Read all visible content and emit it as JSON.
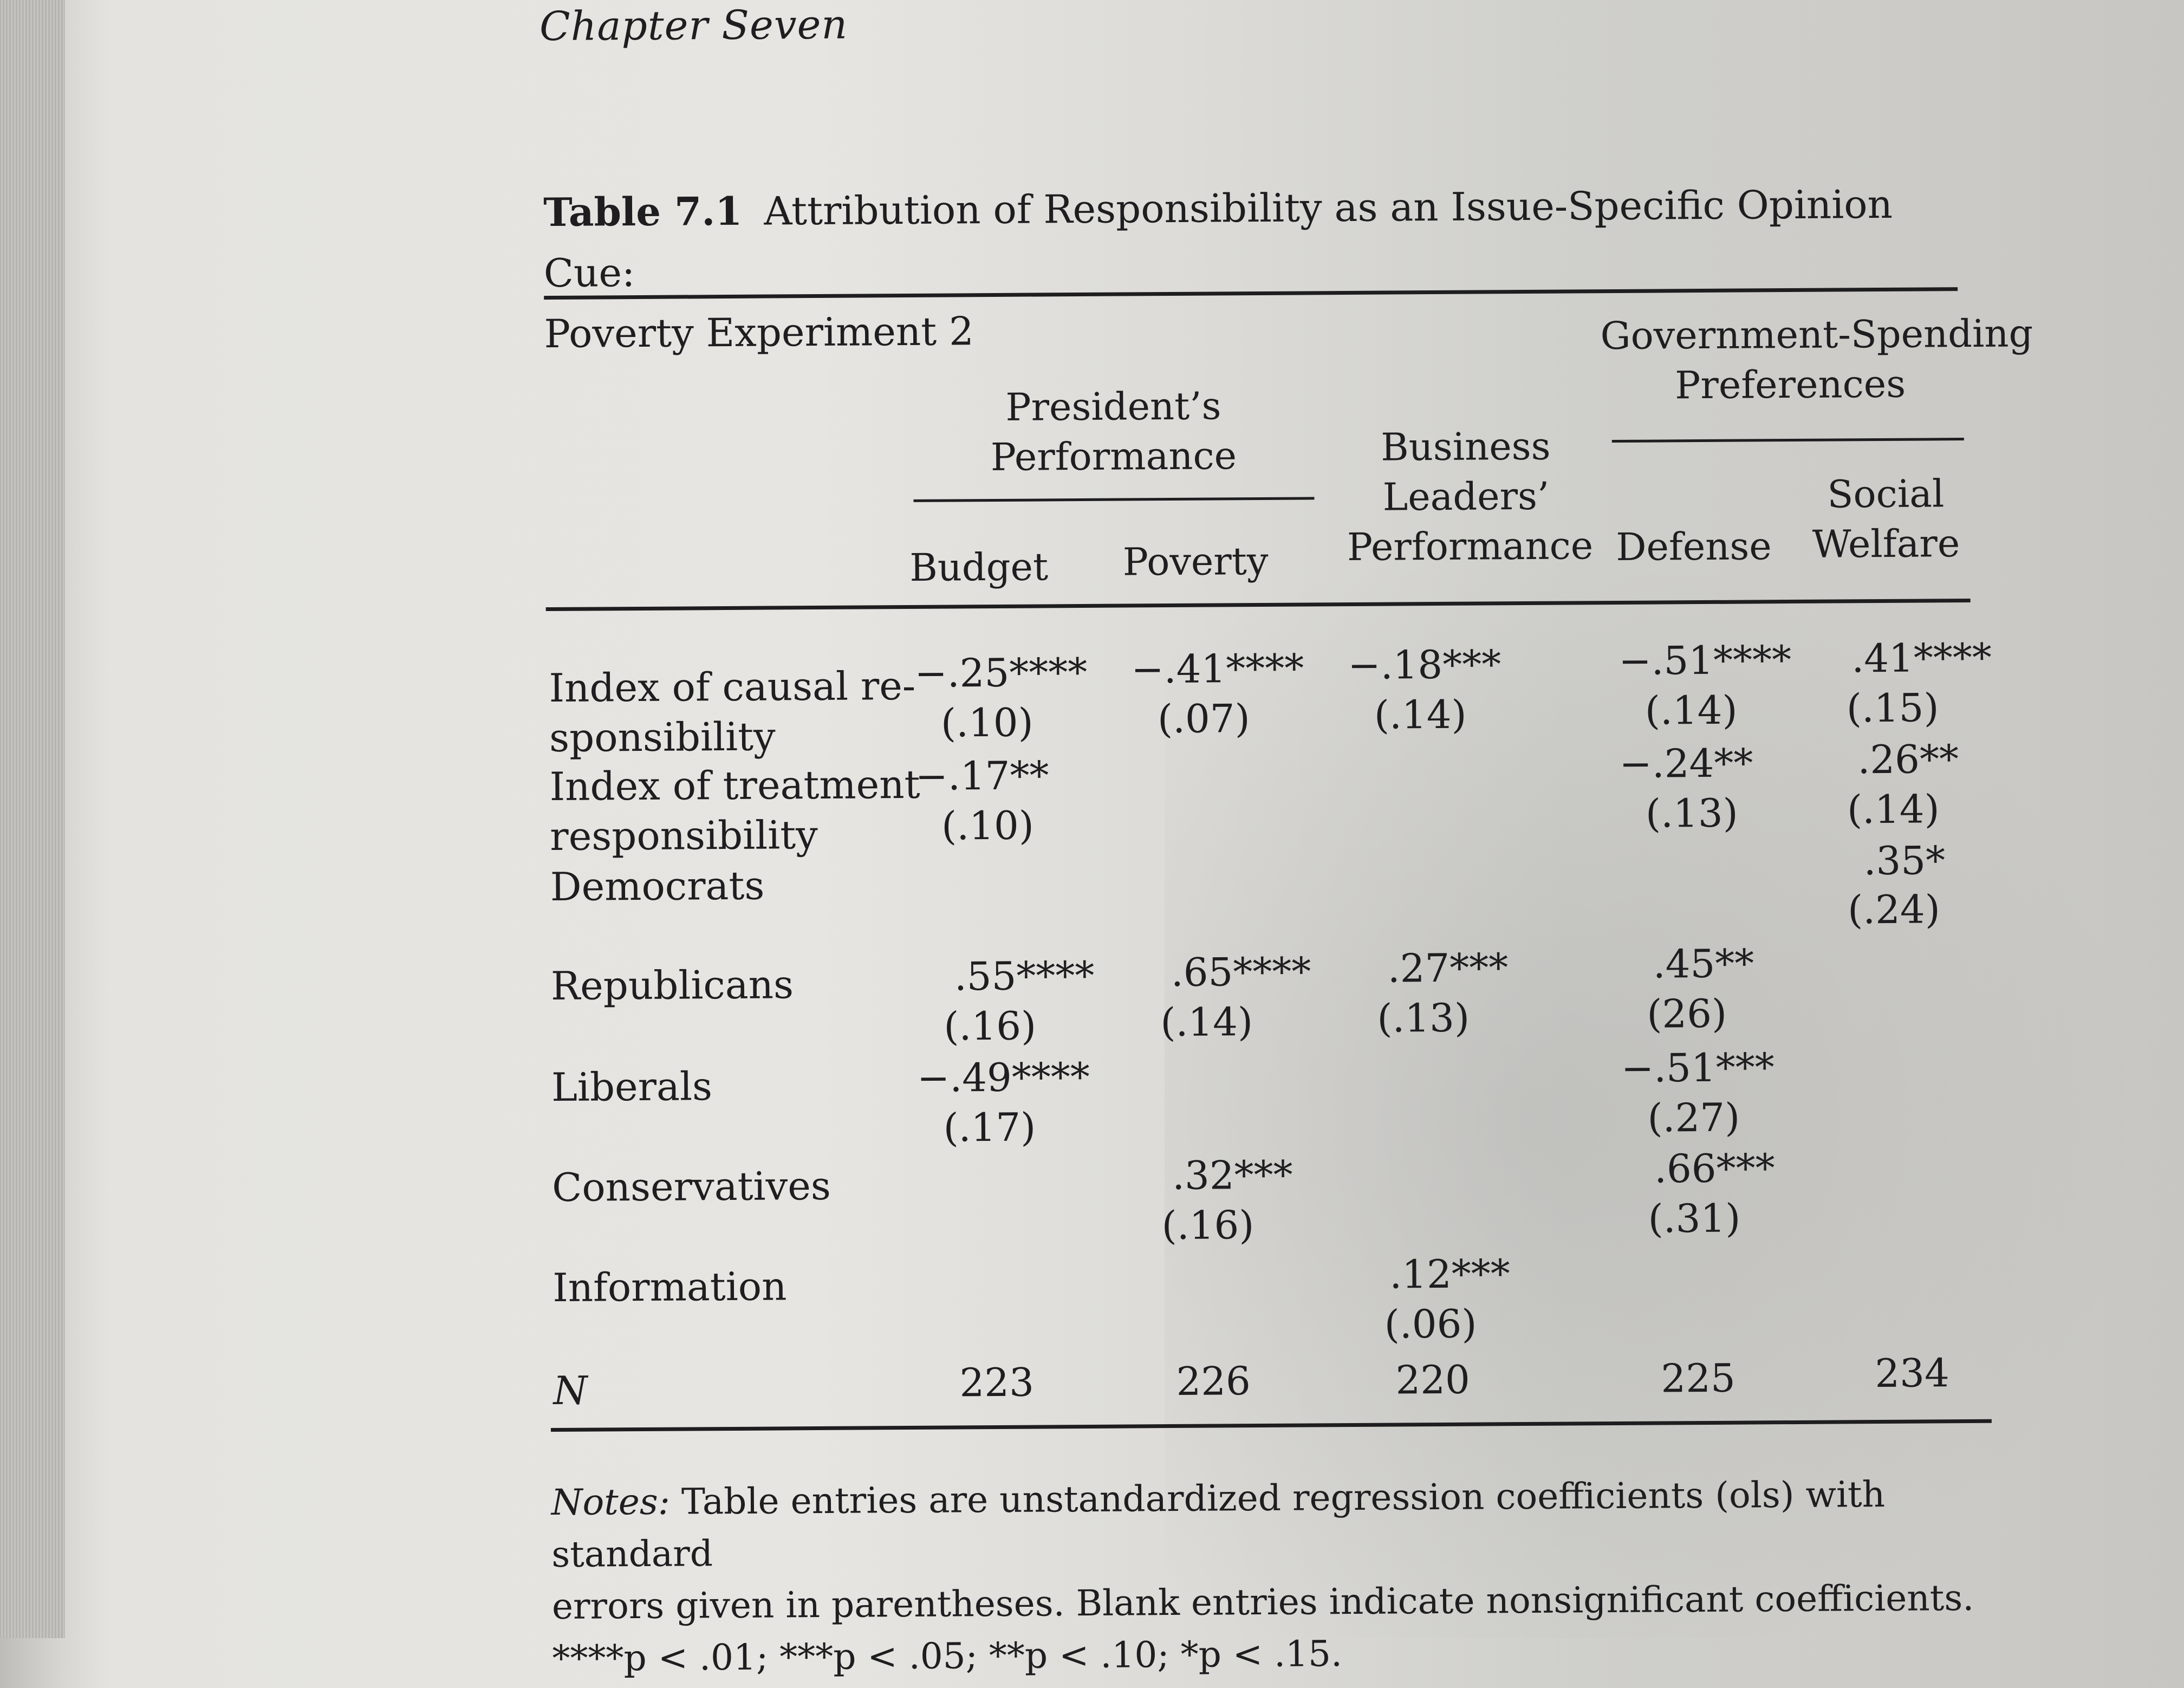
{
  "header": {
    "chapter": "Chapter Seven"
  },
  "caption": {
    "number": "Table 7.1",
    "title_line1": "Attribution of Responsibility as an Issue-Specific Opinion Cue:",
    "title_line2": "Poverty Experiment 2"
  },
  "columns": {
    "group_president": [
      "President’s",
      "Performance"
    ],
    "group_spending": [
      "Government-Spending",
      "Preferences"
    ],
    "budget": "Budget",
    "poverty": "Poverty",
    "business": [
      "Business",
      "Leaders’",
      "Performance"
    ],
    "defense": "Defense",
    "social": [
      "Social",
      "Welfare"
    ]
  },
  "rows": {
    "causal": {
      "label1": "Index of causal re-",
      "label2": "sponsibility",
      "budget": [
        "−.25****",
        "(.10)"
      ],
      "poverty": [
        "−.41****",
        "(.07)"
      ],
      "business": [
        "−.18***",
        "(.14)"
      ],
      "defense": [
        "−.51****",
        "(.14)"
      ],
      "social": [
        ".41****",
        "(.15)"
      ]
    },
    "treatment": {
      "label1": "Index of treatment",
      "label2": "responsibility",
      "budget": [
        "−.17**",
        "(.10)"
      ],
      "defense": [
        "−.24**",
        "(.13)"
      ],
      "social": [
        ".26**",
        "(.14)"
      ]
    },
    "democrats": {
      "label": "Democrats",
      "social": [
        ".35*",
        "(.24)"
      ]
    },
    "republicans": {
      "label": "Republicans",
      "budget": [
        ".55****",
        "(.16)"
      ],
      "poverty": [
        ".65****",
        "(.14)"
      ],
      "business": [
        ".27***",
        "(.13)"
      ],
      "defense": [
        ".45**",
        "(26)"
      ]
    },
    "liberals": {
      "label": "Liberals",
      "budget": [
        "−.49****",
        "(.17)"
      ],
      "defense": [
        "−.51***",
        "(.27)"
      ]
    },
    "conservatives": {
      "label": "Conservatives",
      "poverty": [
        ".32***",
        "(.16)"
      ],
      "defense": [
        ".66***",
        "(.31)"
      ]
    },
    "information": {
      "label": "Information",
      "business": [
        ".12***",
        "(.06)"
      ]
    },
    "n": {
      "label": "N",
      "budget": "223",
      "poverty": "226",
      "business": "220",
      "defense": "225",
      "social": "234"
    }
  },
  "notes": {
    "label": "Notes:",
    "line1": "Table entries are unstandardized regression coefficients (ols) with standard",
    "line2": "errors given in parentheses. Blank entries indicate nonsignificant coefficients.",
    "line3": "****p < .01; ***p < .05; **p < .10; *p < .15."
  }
}
